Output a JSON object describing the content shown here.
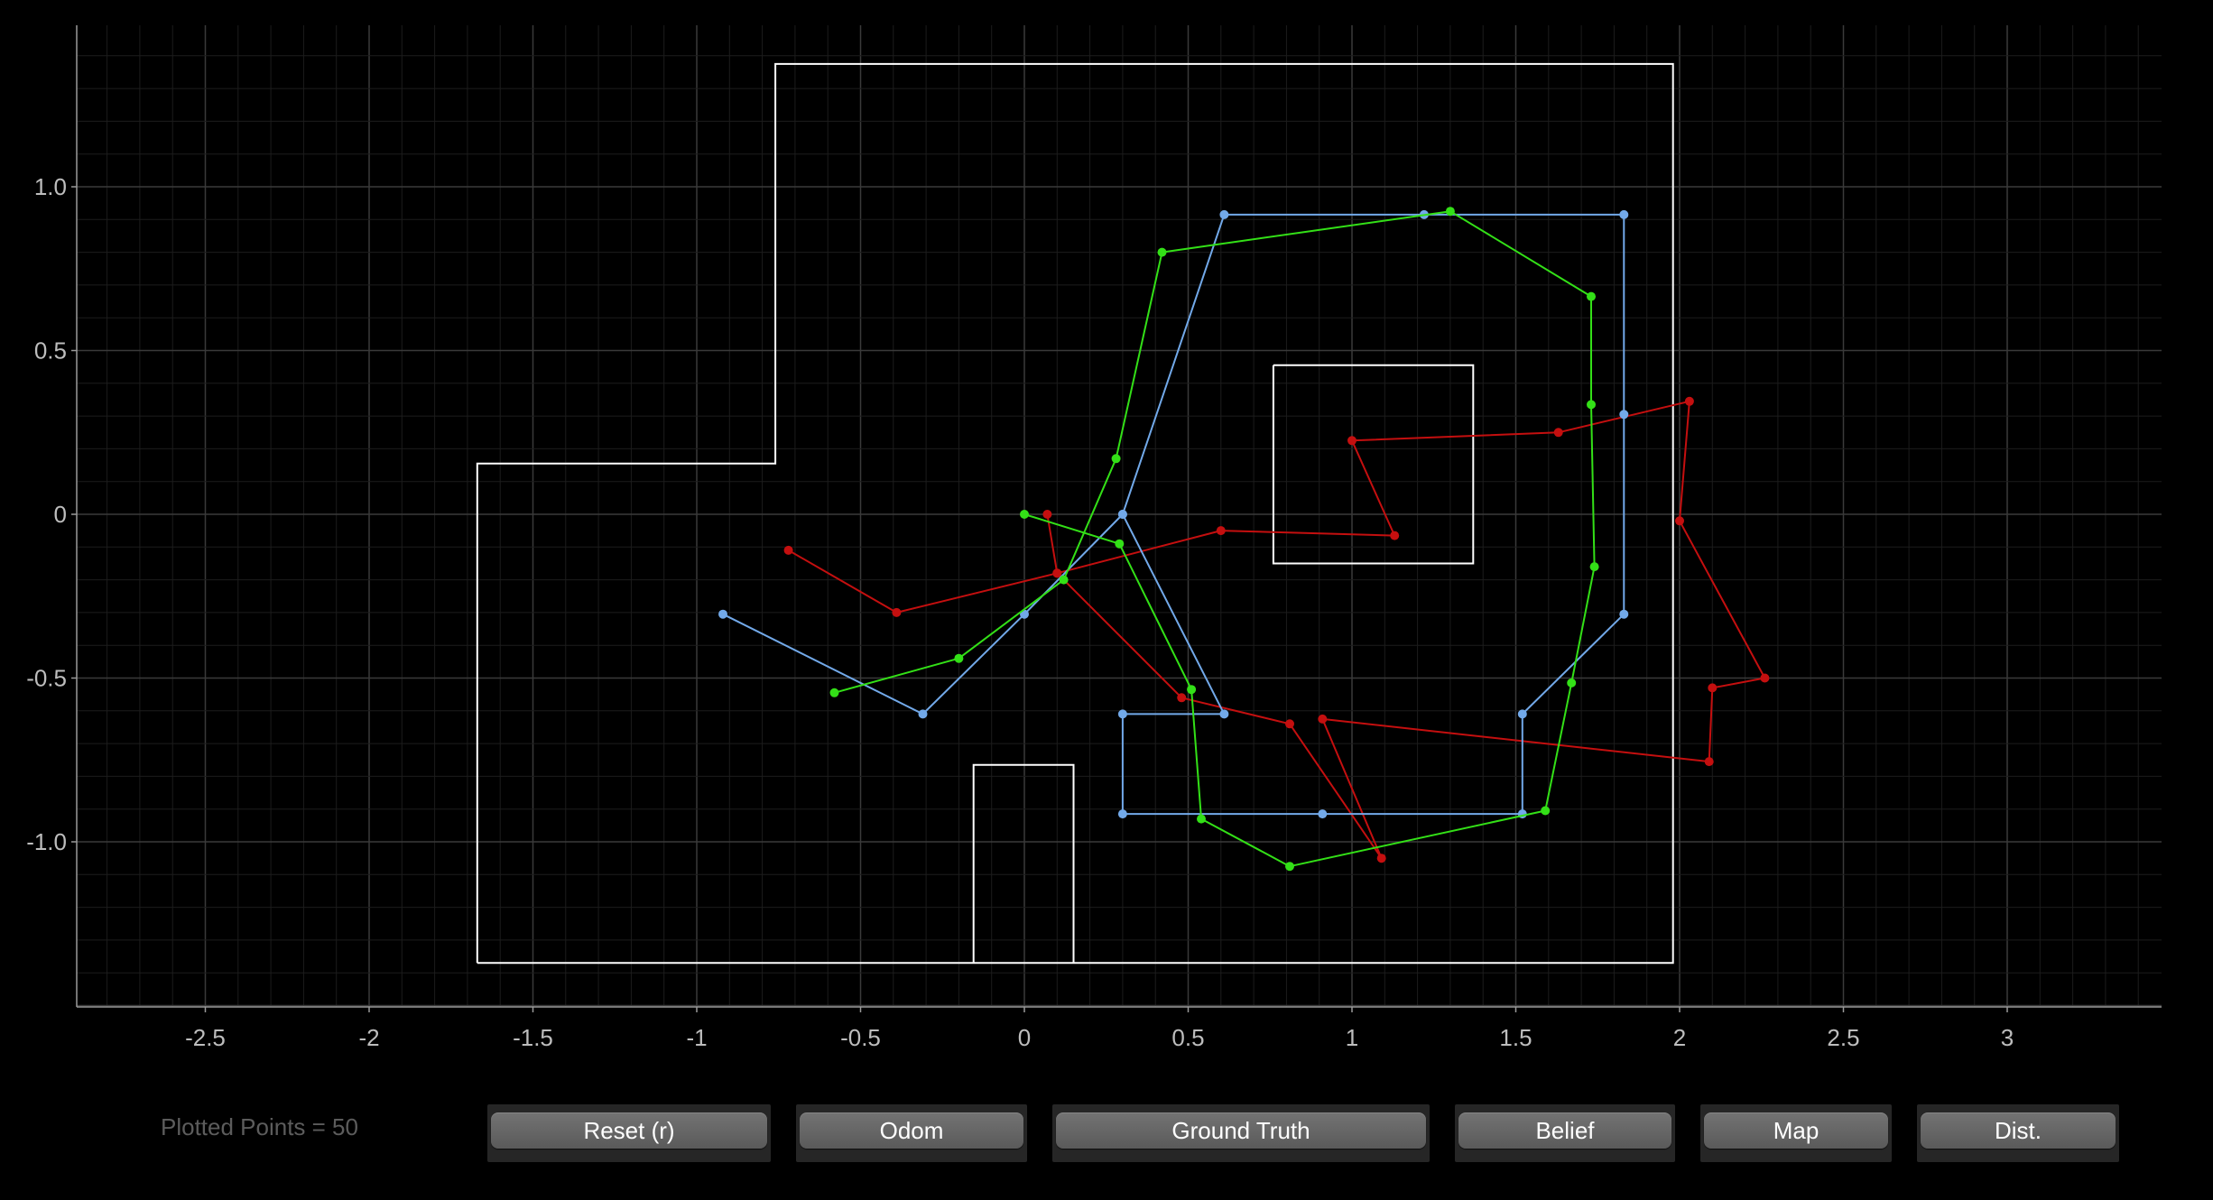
{
  "plot": {
    "background": "#000000",
    "x_ticks": [
      {
        "v": -2.5,
        "label": "-2.5"
      },
      {
        "v": -2,
        "label": "-2"
      },
      {
        "v": -1.5,
        "label": "-1.5"
      },
      {
        "v": -1,
        "label": "-1"
      },
      {
        "v": -0.5,
        "label": "-0.5"
      },
      {
        "v": 0,
        "label": "0"
      },
      {
        "v": 0.5,
        "label": "0.5"
      },
      {
        "v": 1,
        "label": "1"
      },
      {
        "v": 1.5,
        "label": "1.5"
      },
      {
        "v": 2,
        "label": "2"
      },
      {
        "v": 2.5,
        "label": "2.5"
      },
      {
        "v": 3,
        "label": "3"
      }
    ],
    "y_ticks": [
      {
        "v": 1.0,
        "label": "1.0"
      },
      {
        "v": 0.5,
        "label": "0.5"
      },
      {
        "v": 0,
        "label": "0"
      },
      {
        "v": -0.5,
        "label": "-0.5"
      },
      {
        "v": -1.0,
        "label": "-1.0"
      }
    ],
    "xlim": [
      -2.88,
      3.5
    ],
    "ylim": [
      -1.5,
      1.5
    ],
    "grid": true,
    "map_color": "#ffffff",
    "map_walls": [
      [
        [
          -1.67,
          -1.37
        ],
        [
          -1.67,
          0.155
        ],
        [
          -0.76,
          0.155
        ],
        [
          -0.76,
          1.375
        ],
        [
          1.98,
          1.375
        ],
        [
          1.98,
          -1.37
        ],
        [
          -1.67,
          -1.37
        ]
      ],
      [
        [
          0.76,
          0.455
        ],
        [
          1.37,
          0.455
        ],
        [
          1.37,
          -0.15
        ],
        [
          0.76,
          -0.15
        ],
        [
          0.76,
          0.455
        ]
      ],
      [
        [
          -0.155,
          -1.37
        ],
        [
          -0.155,
          -0.765
        ],
        [
          0.15,
          -0.765
        ],
        [
          0.15,
          -1.37
        ]
      ]
    ],
    "series": [
      {
        "name": "Odom",
        "color": "#c40f0f",
        "points": [
          [
            -0.72,
            -0.11
          ],
          [
            -0.39,
            -0.3
          ],
          [
            0.1,
            -0.18
          ],
          [
            0.6,
            -0.05
          ],
          [
            1.13,
            -0.065
          ],
          [
            1.0,
            0.225
          ],
          [
            1.63,
            0.25
          ],
          [
            2.03,
            0.345
          ],
          [
            2.0,
            -0.02
          ],
          [
            2.26,
            -0.5
          ],
          [
            2.1,
            -0.53
          ],
          [
            2.09,
            -0.755
          ],
          [
            0.91,
            -0.625
          ],
          [
            1.09,
            -1.05
          ],
          [
            0.81,
            -0.64
          ],
          [
            0.48,
            -0.56
          ],
          [
            0.1,
            -0.18
          ],
          [
            0.07,
            0.0
          ]
        ]
      },
      {
        "name": "Ground Truth",
        "color": "#72a9e9",
        "points": [
          [
            -0.92,
            -0.305
          ],
          [
            -0.31,
            -0.61
          ],
          [
            0.0,
            -0.305
          ],
          [
            0.3,
            0.0
          ],
          [
            0.61,
            0.915
          ],
          [
            1.22,
            0.915
          ],
          [
            1.83,
            0.915
          ],
          [
            1.83,
            0.305
          ],
          [
            1.83,
            -0.305
          ],
          [
            1.52,
            -0.61
          ],
          [
            1.52,
            -0.915
          ],
          [
            0.91,
            -0.915
          ],
          [
            0.3,
            -0.915
          ],
          [
            0.3,
            -0.61
          ],
          [
            0.61,
            -0.61
          ],
          [
            0.3,
            0.0
          ]
        ]
      },
      {
        "name": "Belief",
        "color": "#33e017",
        "points": [
          [
            -0.58,
            -0.545
          ],
          [
            -0.2,
            -0.44
          ],
          [
            0.12,
            -0.2
          ],
          [
            0.28,
            0.17
          ],
          [
            0.42,
            0.8
          ],
          [
            1.3,
            0.925
          ],
          [
            1.73,
            0.665
          ],
          [
            1.73,
            0.335
          ],
          [
            1.74,
            -0.16
          ],
          [
            1.67,
            -0.515
          ],
          [
            1.59,
            -0.905
          ],
          [
            0.81,
            -1.075
          ],
          [
            0.54,
            -0.93
          ],
          [
            0.51,
            -0.535
          ],
          [
            0.29,
            -0.09
          ],
          [
            0.0,
            0.0
          ]
        ]
      }
    ]
  },
  "status": {
    "plotted_points": "Plotted Points = 50"
  },
  "buttons": {
    "reset": "Reset (r)",
    "odom": "Odom",
    "ground_truth": "Ground Truth",
    "belief": "Belief",
    "map": "Map",
    "dist": "Dist."
  }
}
